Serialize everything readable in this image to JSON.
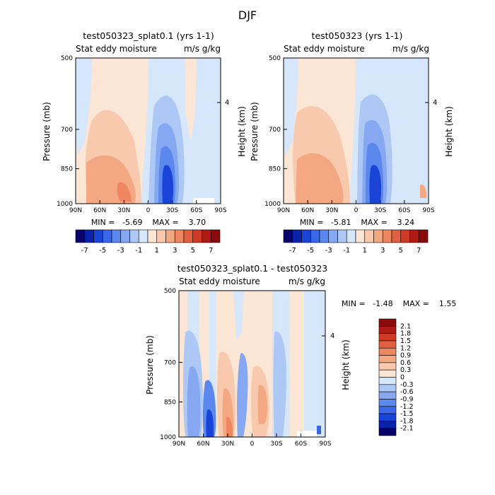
{
  "figure": {
    "season_title": "DJF"
  },
  "colors": {
    "negative": [
      "#08006b",
      "#0a22a8",
      "#1a44d8",
      "#3a66e8",
      "#5a88ee",
      "#86a8f2",
      "#aec8f6",
      "#d6e6fb"
    ],
    "positive": [
      "#fbe5d4",
      "#f8c9ad",
      "#f4a882",
      "#ee8660",
      "#e06040",
      "#cf3a26",
      "#b01a14",
      "#8a0a0a"
    ],
    "diff_negative": [
      "#08006b",
      "#0a22a8",
      "#1a44d8",
      "#3a66e8",
      "#5a88ee",
      "#86a8f2",
      "#aec8f6",
      "#d6e6fb"
    ],
    "diff_positive": [
      "#fbe5d4",
      "#f8c9ad",
      "#f4a882",
      "#ee8660",
      "#e06040",
      "#cf3a26",
      "#b01a14",
      "#8a0a0a"
    ]
  },
  "chart_data": [
    {
      "type": "heatmap",
      "title": "test050323_splat0.1 (yrs 1-1)",
      "subtitle_left": "Stat eddy moisture",
      "subtitle_right": "m/s g/kg",
      "ylabel": "Pressure (mb)",
      "ylabel_right": "Height (km)",
      "x_ticks": [
        "90N",
        "60N",
        "30N",
        "0",
        "30S",
        "60S",
        "90S"
      ],
      "y_ticks": [
        "500",
        "700",
        "850",
        "1000"
      ],
      "y_right_ticks": [
        "4"
      ],
      "stats": "MIN =   -5.69    MAX =    3.70",
      "min": -5.69,
      "max": 3.7,
      "colorbar_labels": [
        "-7",
        "-5",
        "-3",
        "-1",
        "1",
        "3",
        "5",
        "7"
      ]
    },
    {
      "type": "heatmap",
      "title": "test050323 (yrs 1-1)",
      "subtitle_left": "Stat eddy moisture",
      "subtitle_right": "m/s g/kg",
      "ylabel": "Pressure (mb)",
      "ylabel_right": "Height (km)",
      "x_ticks": [
        "90N",
        "60N",
        "30N",
        "0",
        "30S",
        "60S",
        "90S"
      ],
      "y_ticks": [
        "500",
        "700",
        "850",
        "1000"
      ],
      "y_right_ticks": [
        "4"
      ],
      "stats": "MIN =   -5.81    MAX =    3.24",
      "min": -5.81,
      "max": 3.24,
      "colorbar_labels": [
        "-7",
        "-5",
        "-3",
        "-1",
        "1",
        "3",
        "5",
        "7"
      ]
    },
    {
      "type": "heatmap",
      "title": "test050323_splat0.1 - test050323",
      "subtitle_left": "Stat eddy moisture",
      "subtitle_right": "m/s g/kg",
      "ylabel": "Pressure (mb)",
      "ylabel_right": "Height (km)",
      "x_ticks": [
        "90N",
        "60N",
        "30N",
        "0",
        "30S",
        "60S",
        "90S"
      ],
      "y_ticks": [
        "500",
        "700",
        "850",
        "1000"
      ],
      "y_right_ticks": [
        "4"
      ],
      "stats": "MIN =   -1.48    MAX =    1.55",
      "min": -1.48,
      "max": 1.55,
      "colorbar_labels": [
        "2.1",
        "1.8",
        "1.5",
        "1.2",
        "0.9",
        "0.6",
        "0.3",
        "0",
        "-0.3",
        "-0.6",
        "-0.9",
        "-1.2",
        "-1.5",
        "-1.8",
        "-2.1"
      ]
    }
  ]
}
